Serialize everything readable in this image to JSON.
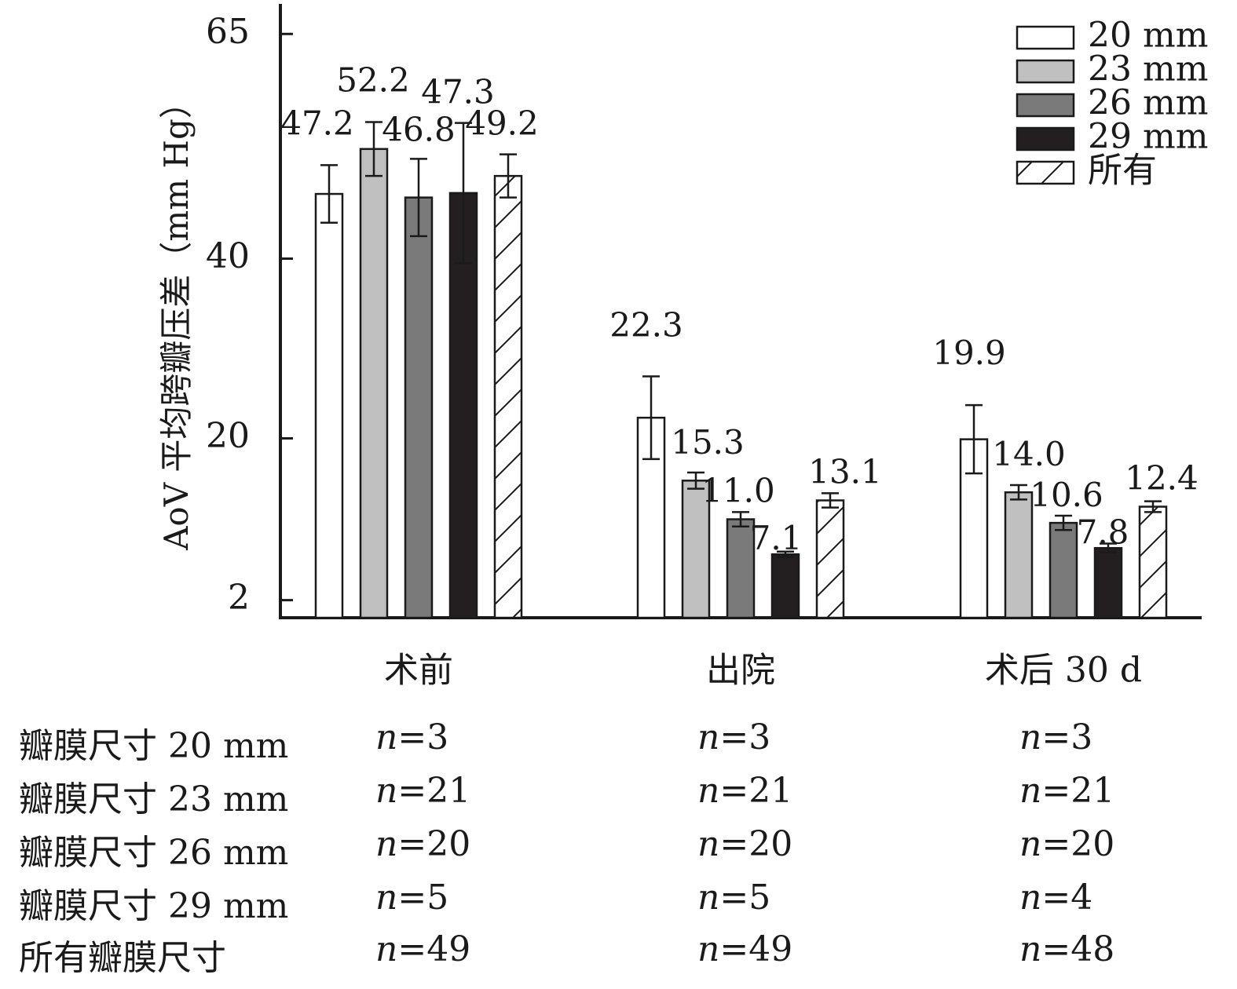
{
  "chart_data": {
    "type": "bar",
    "title": "",
    "xlabel": "",
    "ylabel": "AoV 平均跨瓣压差（mm Hg）",
    "categories": [
      "术前",
      "出院",
      "术后 30 d"
    ],
    "yticks": [
      2,
      20,
      40,
      65
    ],
    "ylim": [
      0,
      65
    ],
    "series": [
      {
        "name": "20 mm",
        "values": [
          47.2,
          22.3,
          19.9
        ],
        "errors": [
          3.2,
          4.6,
          3.8
        ],
        "fill": "#ffffff",
        "hatch": false
      },
      {
        "name": "23 mm",
        "values": [
          52.2,
          15.3,
          14.0
        ],
        "errors": [
          3.0,
          0.9,
          0.8
        ],
        "fill": "#c0c0c0",
        "hatch": false
      },
      {
        "name": "26 mm",
        "values": [
          46.8,
          11.0,
          10.6
        ],
        "errors": [
          4.3,
          0.8,
          0.8
        ],
        "fill": "#7a7a7a",
        "hatch": false
      },
      {
        "name": "29 mm",
        "values": [
          47.3,
          7.1,
          7.8
        ],
        "errors": [
          7.8,
          0.3,
          0.5
        ],
        "fill": "#231f20",
        "hatch": false
      },
      {
        "name": "所有",
        "values": [
          49.2,
          13.1,
          12.4
        ],
        "errors": [
          2.4,
          0.8,
          0.6
        ],
        "fill": "#ffffff",
        "hatch": true
      }
    ],
    "value_labels": [
      [
        "47.2",
        "22.3",
        "19.9"
      ],
      [
        "52.2",
        "15.3",
        "14.0"
      ],
      [
        "46.8",
        "11.0",
        "10.6"
      ],
      [
        "47.3",
        "7.1",
        "7.8"
      ],
      [
        "49.2",
        "13.1",
        "12.4"
      ]
    ],
    "legend": {
      "position": "top-right"
    },
    "grid": false
  },
  "table": {
    "rows": [
      {
        "label": "瓣膜尺寸 20 mm",
        "n_prefix": "n",
        "values": [
          "=3",
          "=3",
          "=3"
        ]
      },
      {
        "label": "瓣膜尺寸 23 mm",
        "n_prefix": "n",
        "values": [
          "=21",
          "=21",
          "=21"
        ]
      },
      {
        "label": "瓣膜尺寸 26 mm",
        "n_prefix": "n",
        "values": [
          "=20",
          "=20",
          "=20"
        ]
      },
      {
        "label": "瓣膜尺寸 29 mm",
        "n_prefix": "n",
        "values": [
          "=5",
          "=5",
          "=4"
        ]
      },
      {
        "label": "所有瓣膜尺寸",
        "n_prefix": "n",
        "values": [
          "=49",
          "=49",
          "=48"
        ]
      }
    ]
  }
}
